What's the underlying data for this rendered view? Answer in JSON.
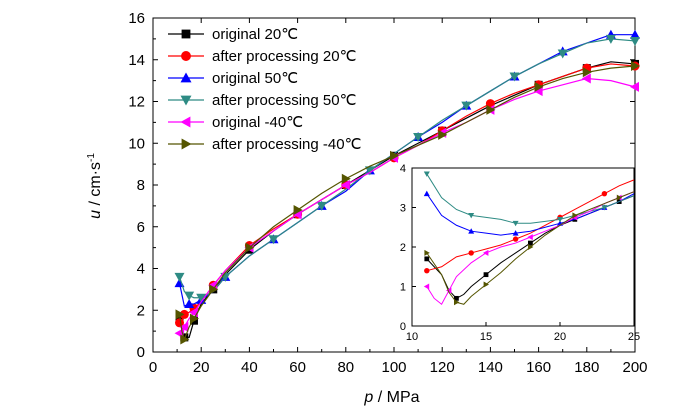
{
  "chart_data": [
    {
      "type": "line",
      "xlabel_var": "p",
      "xlabel_unit": "MPa",
      "ylabel_var": "u",
      "ylabel_unit": "cm·s",
      "ylabel_exp": "-1",
      "xlim": [
        0,
        200
      ],
      "ylim": [
        0,
        16
      ],
      "xticks": [
        0,
        20,
        40,
        60,
        80,
        100,
        120,
        140,
        160,
        180,
        200
      ],
      "yticks": [
        0,
        2,
        4,
        6,
        8,
        10,
        12,
        14,
        16
      ],
      "grid": false,
      "legend_position": "top-left",
      "series": [
        {
          "name": "original 20℃",
          "color": "#000000",
          "marker": "square",
          "x": [
            11,
            12,
            13,
            15,
            17,
            20,
            25,
            30,
            40,
            50,
            60,
            70,
            80,
            90,
            100,
            110,
            120,
            130,
            140,
            150,
            160,
            170,
            180,
            190,
            200
          ],
          "y": [
            1.7,
            1.3,
            0.7,
            0.7,
            1.5,
            2.3,
            3.0,
            3.7,
            4.9,
            5.8,
            6.6,
            7.3,
            8.0,
            8.7,
            9.4,
            10.0,
            10.6,
            11.2,
            11.8,
            12.3,
            12.8,
            13.2,
            13.6,
            13.9,
            13.8
          ]
        },
        {
          "name": "after processing 20℃",
          "color": "#ff0000",
          "marker": "circle",
          "x": [
            11,
            12,
            13,
            15,
            17,
            20,
            25,
            30,
            40,
            50,
            60,
            70,
            80,
            90,
            100,
            110,
            120,
            130,
            140,
            150,
            160,
            170,
            180,
            190,
            200
          ],
          "y": [
            1.4,
            1.5,
            1.8,
            1.9,
            2.1,
            2.4,
            3.2,
            3.9,
            5.1,
            5.9,
            6.6,
            7.3,
            8.0,
            8.6,
            9.3,
            9.9,
            10.6,
            11.3,
            11.9,
            12.4,
            12.8,
            13.2,
            13.6,
            13.8,
            13.7
          ]
        },
        {
          "name": "original 50℃",
          "color": "#0000ff",
          "marker": "triangle-up",
          "x": [
            11,
            13,
            15,
            17,
            20,
            25,
            30,
            40,
            50,
            60,
            70,
            80,
            90,
            100,
            110,
            120,
            130,
            140,
            150,
            160,
            170,
            180,
            190,
            200
          ],
          "y": [
            3.3,
            2.2,
            2.3,
            2.3,
            2.5,
            2.9,
            3.6,
            4.6,
            5.4,
            6.2,
            7.0,
            7.7,
            8.7,
            9.5,
            10.3,
            11.0,
            11.8,
            12.5,
            13.2,
            13.8,
            14.4,
            14.8,
            15.2,
            15.2
          ]
        },
        {
          "name": "after processing 50℃",
          "color": "#2e8b84",
          "marker": "triangle-down",
          "x": [
            11,
            13,
            15,
            17,
            20,
            25,
            30,
            40,
            50,
            60,
            70,
            80,
            90,
            100,
            110,
            120,
            130,
            140,
            150,
            160,
            170,
            180,
            190,
            200
          ],
          "y": [
            3.6,
            2.9,
            2.7,
            2.6,
            2.6,
            2.9,
            3.6,
            4.6,
            5.4,
            6.2,
            7.0,
            7.8,
            8.7,
            9.5,
            10.3,
            11.1,
            11.8,
            12.5,
            13.2,
            13.8,
            14.3,
            14.8,
            15.0,
            14.9
          ]
        },
        {
          "name": "original -40℃",
          "color": "#ff00ff",
          "marker": "triangle-left",
          "x": [
            11,
            12,
            13,
            15,
            17,
            20,
            25,
            30,
            40,
            50,
            60,
            70,
            80,
            90,
            100,
            110,
            120,
            130,
            140,
            150,
            160,
            170,
            180,
            190,
            200
          ],
          "y": [
            0.9,
            0.5,
            1.2,
            1.6,
            1.9,
            2.4,
            3.2,
            3.9,
            5.0,
            5.8,
            6.6,
            7.3,
            8.0,
            8.6,
            9.3,
            9.9,
            10.5,
            11.0,
            11.6,
            12.1,
            12.5,
            12.8,
            13.1,
            13.0,
            12.7
          ]
        },
        {
          "name": "after processing -40℃",
          "color": "#555500",
          "marker": "triangle-right",
          "x": [
            11,
            12,
            13,
            15,
            17,
            20,
            25,
            30,
            40,
            50,
            60,
            70,
            80,
            90,
            100,
            110,
            120,
            130,
            140,
            150,
            160,
            170,
            180,
            190,
            200
          ],
          "y": [
            1.8,
            1.0,
            0.6,
            1.2,
            1.6,
            2.2,
            3.0,
            3.8,
            5.0,
            6.0,
            6.8,
            7.6,
            8.3,
            8.9,
            9.4,
            9.9,
            10.4,
            11.0,
            11.6,
            12.2,
            12.7,
            13.1,
            13.4,
            13.6,
            13.7
          ]
        }
      ]
    },
    {
      "type": "line",
      "inset": true,
      "xlim": [
        10,
        25
      ],
      "ylim": [
        0,
        4
      ],
      "xticks": [
        10,
        15,
        20,
        25
      ],
      "yticks": [
        0,
        1,
        2,
        3,
        4
      ],
      "series": [
        {
          "name": "original 20℃",
          "x": [
            11,
            12,
            12.5,
            13,
            13.5,
            14,
            15,
            16,
            17,
            18,
            19,
            20,
            21,
            22,
            23,
            24,
            25
          ],
          "y": [
            1.7,
            1.3,
            0.9,
            0.7,
            0.8,
            1.0,
            1.3,
            1.6,
            1.85,
            2.1,
            2.35,
            2.55,
            2.7,
            2.85,
            3.0,
            3.15,
            3.3
          ]
        },
        {
          "name": "after processing 20℃",
          "x": [
            11,
            12,
            13,
            14,
            15,
            16,
            17,
            18,
            19,
            20,
            21,
            22,
            23,
            24,
            25
          ],
          "y": [
            1.4,
            1.5,
            1.75,
            1.85,
            1.95,
            2.05,
            2.2,
            2.35,
            2.55,
            2.75,
            2.95,
            3.15,
            3.35,
            3.55,
            3.7
          ]
        },
        {
          "name": "original 50℃",
          "x": [
            11,
            12,
            13,
            14,
            15,
            16,
            17,
            18,
            19,
            20,
            21,
            22,
            23,
            24,
            25
          ],
          "y": [
            3.35,
            2.8,
            2.55,
            2.4,
            2.35,
            2.3,
            2.35,
            2.4,
            2.5,
            2.6,
            2.7,
            2.85,
            3.0,
            3.15,
            3.35
          ]
        },
        {
          "name": "after processing 50℃",
          "x": [
            11,
            12,
            13,
            14,
            15,
            16,
            17,
            18,
            19,
            20,
            21,
            22,
            23,
            24,
            25
          ],
          "y": [
            3.85,
            3.25,
            2.95,
            2.8,
            2.75,
            2.7,
            2.6,
            2.6,
            2.65,
            2.7,
            2.8,
            2.9,
            3.0,
            3.15,
            3.3
          ]
        },
        {
          "name": "original -40℃",
          "x": [
            11,
            11.5,
            12,
            12.5,
            13,
            14,
            15,
            16,
            17,
            18,
            19,
            20,
            21,
            22,
            23,
            24,
            25
          ],
          "y": [
            1.0,
            0.7,
            0.55,
            0.9,
            1.25,
            1.6,
            1.85,
            2.0,
            2.1,
            2.25,
            2.4,
            2.55,
            2.75,
            2.9,
            3.1,
            3.25,
            3.4
          ]
        },
        {
          "name": "after processing -40℃",
          "x": [
            11,
            12,
            12.5,
            13,
            13.5,
            14,
            15,
            16,
            17,
            18,
            19,
            20,
            21,
            22,
            23,
            24,
            25
          ],
          "y": [
            1.85,
            1.3,
            0.85,
            0.6,
            0.55,
            0.75,
            1.05,
            1.35,
            1.7,
            2.0,
            2.3,
            2.55,
            2.8,
            2.95,
            3.1,
            3.25,
            3.4
          ]
        }
      ]
    }
  ]
}
